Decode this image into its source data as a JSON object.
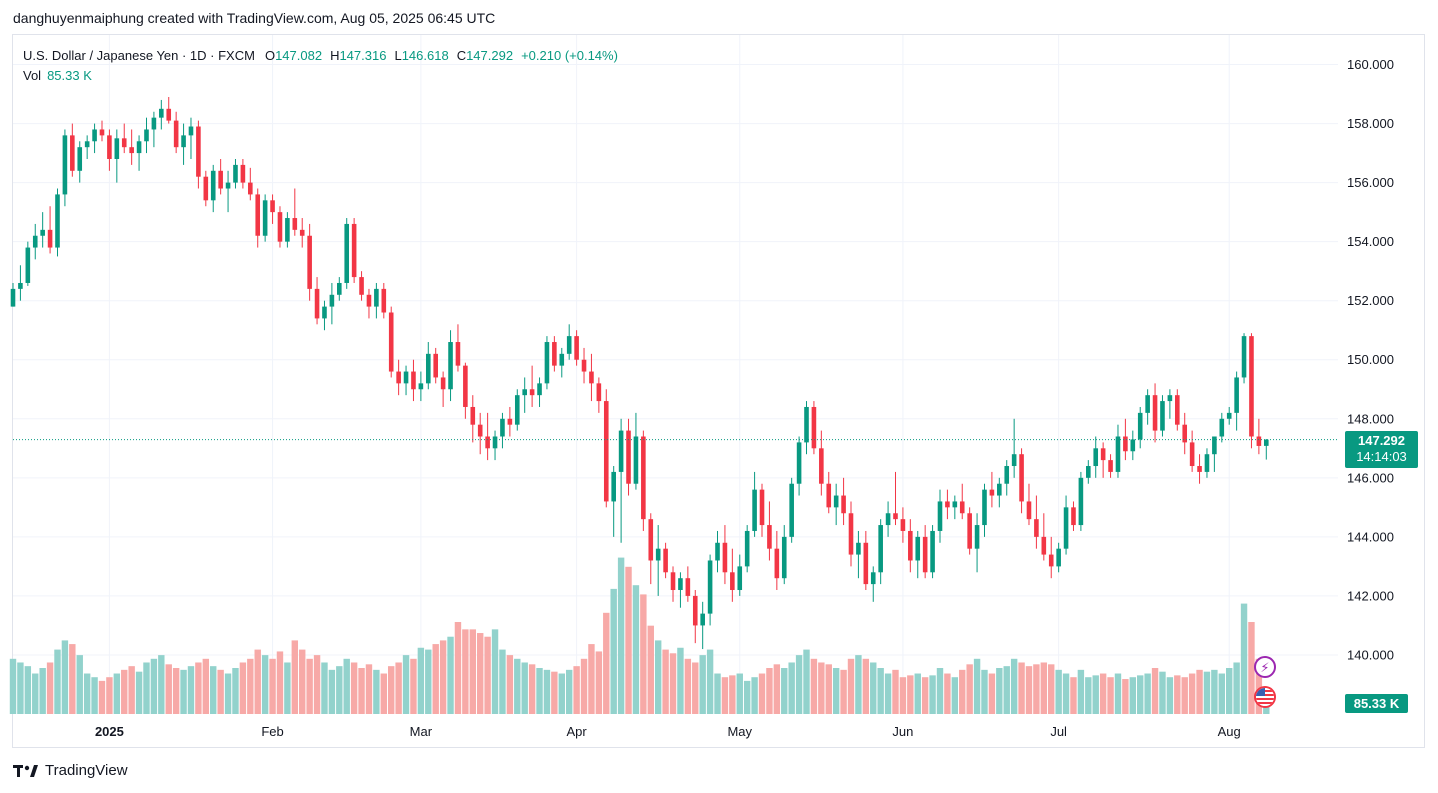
{
  "header": {
    "created_by": "danghuyenmaiphung created with TradingView.com, Aug 05, 2025 06:45 UTC"
  },
  "legend": {
    "symbol": "U.S. Dollar / Japanese Yen · 1D · FXCM",
    "o_label": "O",
    "o_value": "147.082",
    "h_label": "H",
    "h_value": "147.316",
    "l_label": "L",
    "l_value": "146.618",
    "c_label": "C",
    "c_value": "147.292",
    "change": "+0.210 (+0.14%)",
    "vol_label": "Vol",
    "vol_value": "85.33 K"
  },
  "price_tag": {
    "price": "147.292",
    "countdown": "14:14:03"
  },
  "volume_tag": "85.33 K",
  "footer": {
    "brand": "TradingView"
  },
  "colors": {
    "up": "#089981",
    "down": "#f23645",
    "up_vol": "#92d2cc",
    "down_vol": "#f7a9a7"
  },
  "icons": {
    "event_1": "lightning-icon",
    "event_2": "us-flag-icon",
    "logo": "tradingview-logo-icon"
  },
  "chart_data": {
    "type": "candlestick",
    "symbol": "USDJPY",
    "ylim": [
      138.0,
      161.0
    ],
    "y_ticks": [
      "160.000",
      "158.000",
      "156.000",
      "154.000",
      "152.000",
      "150.000",
      "148.000",
      "146.000",
      "144.000",
      "142.000",
      "140.000"
    ],
    "x_labels": [
      {
        "label": "2025",
        "bar": 13,
        "bold": true
      },
      {
        "label": "Feb",
        "bar": 35
      },
      {
        "label": "Mar",
        "bar": 55
      },
      {
        "label": "Apr",
        "bar": 76
      },
      {
        "label": "May",
        "bar": 98
      },
      {
        "label": "Jun",
        "bar": 120
      },
      {
        "label": "Jul",
        "bar": 141
      },
      {
        "label": "Aug",
        "bar": 164
      }
    ],
    "last_price": 147.292,
    "volume_max": 100,
    "candles": [
      [
        151.8,
        152.6,
        151.8,
        152.4,
        30
      ],
      [
        152.4,
        153.2,
        152.0,
        152.6,
        28
      ],
      [
        152.6,
        154.0,
        152.5,
        153.8,
        26
      ],
      [
        153.8,
        154.6,
        153.4,
        154.2,
        22
      ],
      [
        154.2,
        155.0,
        153.8,
        154.4,
        25
      ],
      [
        154.4,
        155.2,
        153.6,
        153.8,
        28
      ],
      [
        153.8,
        155.8,
        153.5,
        155.6,
        35
      ],
      [
        155.6,
        157.8,
        155.2,
        157.6,
        40
      ],
      [
        157.6,
        158.0,
        156.2,
        156.4,
        38
      ],
      [
        156.4,
        157.4,
        156.0,
        157.2,
        32
      ],
      [
        157.2,
        157.6,
        156.8,
        157.4,
        22
      ],
      [
        157.4,
        158.0,
        157.0,
        157.8,
        20
      ],
      [
        157.8,
        158.1,
        157.4,
        157.6,
        18
      ],
      [
        157.6,
        157.8,
        156.4,
        156.8,
        20
      ],
      [
        156.8,
        157.8,
        156.0,
        157.5,
        22
      ],
      [
        157.5,
        158.0,
        157.0,
        157.2,
        24
      ],
      [
        157.2,
        157.8,
        156.6,
        157.0,
        26
      ],
      [
        157.0,
        157.6,
        156.4,
        157.4,
        23
      ],
      [
        157.4,
        158.2,
        157.0,
        157.8,
        28
      ],
      [
        157.8,
        158.4,
        157.2,
        158.2,
        30
      ],
      [
        158.2,
        158.8,
        157.8,
        158.5,
        32
      ],
      [
        158.5,
        158.9,
        158.0,
        158.1,
        27
      ],
      [
        158.1,
        158.4,
        157.0,
        157.2,
        25
      ],
      [
        157.2,
        158.0,
        156.6,
        157.6,
        24
      ],
      [
        157.6,
        158.2,
        156.8,
        157.9,
        26
      ],
      [
        157.9,
        158.1,
        155.8,
        156.2,
        28
      ],
      [
        156.2,
        156.4,
        155.2,
        155.4,
        30
      ],
      [
        155.4,
        156.6,
        155.0,
        156.4,
        26
      ],
      [
        156.4,
        156.8,
        155.6,
        155.8,
        24
      ],
      [
        155.8,
        156.4,
        155.0,
        156.0,
        22
      ],
      [
        156.0,
        156.8,
        155.8,
        156.6,
        25
      ],
      [
        156.6,
        156.8,
        155.8,
        156.0,
        28
      ],
      [
        156.0,
        156.5,
        155.4,
        155.6,
        30
      ],
      [
        155.6,
        155.8,
        153.8,
        154.2,
        35
      ],
      [
        154.2,
        155.6,
        154.0,
        155.4,
        32
      ],
      [
        155.4,
        155.6,
        154.6,
        155.0,
        30
      ],
      [
        155.0,
        155.2,
        153.8,
        154.0,
        34
      ],
      [
        154.0,
        155.0,
        153.8,
        154.8,
        28
      ],
      [
        154.8,
        155.8,
        154.2,
        154.4,
        40
      ],
      [
        154.4,
        154.8,
        153.8,
        154.2,
        35
      ],
      [
        154.2,
        154.6,
        152.0,
        152.4,
        30
      ],
      [
        152.4,
        152.8,
        151.2,
        151.4,
        32
      ],
      [
        151.4,
        152.0,
        151.0,
        151.8,
        28
      ],
      [
        151.8,
        152.6,
        151.2,
        152.2,
        24
      ],
      [
        152.2,
        152.8,
        152.0,
        152.6,
        26
      ],
      [
        152.6,
        154.8,
        152.4,
        154.6,
        30
      ],
      [
        154.6,
        154.8,
        152.6,
        152.8,
        28
      ],
      [
        152.8,
        153.0,
        152.0,
        152.2,
        25
      ],
      [
        152.2,
        152.4,
        151.4,
        151.8,
        27
      ],
      [
        151.8,
        152.6,
        151.4,
        152.4,
        24
      ],
      [
        152.4,
        152.6,
        151.4,
        151.6,
        22
      ],
      [
        151.6,
        151.8,
        149.4,
        149.6,
        26
      ],
      [
        149.6,
        150.0,
        148.8,
        149.2,
        28
      ],
      [
        149.2,
        149.8,
        148.8,
        149.6,
        32
      ],
      [
        149.6,
        150.0,
        148.6,
        149.0,
        30
      ],
      [
        149.0,
        149.6,
        148.6,
        149.2,
        36
      ],
      [
        149.2,
        150.6,
        149.0,
        150.2,
        35
      ],
      [
        150.2,
        150.4,
        149.2,
        149.4,
        38
      ],
      [
        149.4,
        149.6,
        148.4,
        149.0,
        40
      ],
      [
        149.0,
        151.0,
        148.6,
        150.6,
        42
      ],
      [
        150.6,
        151.2,
        149.6,
        149.8,
        50
      ],
      [
        149.8,
        149.9,
        148.0,
        148.4,
        46
      ],
      [
        148.4,
        148.8,
        147.2,
        147.8,
        46
      ],
      [
        147.8,
        148.2,
        146.8,
        147.4,
        44
      ],
      [
        147.4,
        148.2,
        146.6,
        147.0,
        42
      ],
      [
        147.0,
        147.6,
        146.6,
        147.4,
        46
      ],
      [
        147.4,
        148.2,
        147.0,
        148.0,
        35
      ],
      [
        148.0,
        148.4,
        147.4,
        147.8,
        32
      ],
      [
        147.8,
        149.0,
        147.6,
        148.8,
        30
      ],
      [
        148.8,
        149.4,
        148.2,
        149.0,
        28
      ],
      [
        149.0,
        149.8,
        148.4,
        148.8,
        27
      ],
      [
        148.8,
        149.4,
        148.4,
        149.2,
        25
      ],
      [
        149.2,
        150.8,
        149.0,
        150.6,
        24
      ],
      [
        150.6,
        150.8,
        149.6,
        149.8,
        23
      ],
      [
        149.8,
        150.4,
        149.4,
        150.2,
        22
      ],
      [
        150.2,
        151.2,
        150.0,
        150.8,
        24
      ],
      [
        150.8,
        151.0,
        149.8,
        150.0,
        26
      ],
      [
        150.0,
        150.4,
        149.2,
        149.6,
        30
      ],
      [
        149.6,
        150.2,
        148.6,
        149.2,
        38
      ],
      [
        149.2,
        149.4,
        148.2,
        148.6,
        34
      ],
      [
        148.6,
        149.0,
        145.0,
        145.2,
        55
      ],
      [
        145.2,
        146.4,
        144.0,
        146.2,
        68
      ],
      [
        146.2,
        148.0,
        143.8,
        147.6,
        85
      ],
      [
        147.6,
        148.0,
        145.4,
        145.8,
        80
      ],
      [
        145.8,
        148.2,
        145.6,
        147.4,
        70
      ],
      [
        147.4,
        147.6,
        144.2,
        144.6,
        65
      ],
      [
        144.6,
        144.8,
        142.4,
        143.2,
        48
      ],
      [
        143.2,
        144.4,
        142.0,
        143.6,
        40
      ],
      [
        143.6,
        143.8,
        142.6,
        142.8,
        35
      ],
      [
        142.8,
        143.0,
        141.8,
        142.2,
        33
      ],
      [
        142.2,
        142.8,
        141.6,
        142.6,
        36
      ],
      [
        142.6,
        143.0,
        141.8,
        142.0,
        30
      ],
      [
        142.0,
        142.2,
        140.4,
        141.0,
        28
      ],
      [
        141.0,
        141.8,
        140.2,
        141.4,
        32
      ],
      [
        141.4,
        143.4,
        141.0,
        143.2,
        35
      ],
      [
        143.2,
        144.2,
        142.8,
        143.8,
        22
      ],
      [
        143.8,
        144.4,
        142.4,
        142.8,
        20
      ],
      [
        142.8,
        143.6,
        141.8,
        142.2,
        21
      ],
      [
        142.2,
        143.4,
        142.0,
        143.0,
        22
      ],
      [
        143.0,
        144.4,
        142.8,
        144.2,
        18
      ],
      [
        144.2,
        146.2,
        144.0,
        145.6,
        20
      ],
      [
        145.6,
        145.8,
        144.0,
        144.4,
        22
      ],
      [
        144.4,
        145.2,
        143.2,
        143.6,
        25
      ],
      [
        143.6,
        144.2,
        142.2,
        142.6,
        27
      ],
      [
        142.6,
        144.4,
        142.4,
        144.0,
        25
      ],
      [
        144.0,
        146.0,
        143.8,
        145.8,
        28
      ],
      [
        145.8,
        147.4,
        145.4,
        147.2,
        32
      ],
      [
        147.2,
        148.6,
        146.8,
        148.4,
        35
      ],
      [
        148.4,
        148.6,
        146.8,
        147.0,
        30
      ],
      [
        147.0,
        147.6,
        145.4,
        145.8,
        28
      ],
      [
        145.8,
        146.2,
        144.8,
        145.0,
        27
      ],
      [
        145.0,
        145.8,
        144.4,
        145.4,
        25
      ],
      [
        145.4,
        146.0,
        144.4,
        144.8,
        24
      ],
      [
        144.8,
        145.2,
        143.0,
        143.4,
        30
      ],
      [
        143.4,
        144.2,
        142.6,
        143.8,
        32
      ],
      [
        143.8,
        144.2,
        142.2,
        142.4,
        30
      ],
      [
        142.4,
        143.0,
        141.8,
        142.8,
        28
      ],
      [
        142.8,
        144.6,
        142.4,
        144.4,
        25
      ],
      [
        144.4,
        145.2,
        144.0,
        144.8,
        22
      ],
      [
        144.8,
        146.2,
        144.4,
        144.6,
        24
      ],
      [
        144.6,
        145.0,
        143.8,
        144.2,
        20
      ],
      [
        144.2,
        144.6,
        142.8,
        143.2,
        21
      ],
      [
        143.2,
        144.2,
        142.6,
        144.0,
        22
      ],
      [
        144.0,
        144.4,
        142.6,
        142.8,
        20
      ],
      [
        142.8,
        144.4,
        142.6,
        144.2,
        21
      ],
      [
        144.2,
        145.6,
        143.8,
        145.2,
        25
      ],
      [
        145.2,
        145.6,
        144.6,
        145.0,
        22
      ],
      [
        145.0,
        145.4,
        144.6,
        145.2,
        20
      ],
      [
        145.2,
        145.8,
        144.6,
        144.8,
        24
      ],
      [
        144.8,
        145.0,
        143.4,
        143.6,
        27
      ],
      [
        143.6,
        144.8,
        142.8,
        144.4,
        30
      ],
      [
        144.4,
        145.8,
        144.0,
        145.6,
        24
      ],
      [
        145.6,
        146.2,
        145.0,
        145.4,
        22
      ],
      [
        145.4,
        146.0,
        145.0,
        145.8,
        25
      ],
      [
        145.8,
        146.6,
        145.4,
        146.4,
        26
      ],
      [
        146.4,
        148.0,
        146.0,
        146.8,
        30
      ],
      [
        146.8,
        147.0,
        144.8,
        145.2,
        28
      ],
      [
        145.2,
        145.8,
        144.4,
        144.6,
        26
      ],
      [
        144.6,
        145.4,
        143.6,
        144.0,
        27
      ],
      [
        144.0,
        144.8,
        143.2,
        143.4,
        28
      ],
      [
        143.4,
        144.0,
        142.6,
        143.0,
        27
      ],
      [
        143.0,
        143.8,
        142.8,
        143.6,
        24
      ],
      [
        143.6,
        145.4,
        143.4,
        145.0,
        22
      ],
      [
        145.0,
        145.2,
        144.2,
        144.4,
        20
      ],
      [
        144.4,
        146.2,
        144.2,
        146.0,
        24
      ],
      [
        146.0,
        146.6,
        145.8,
        146.4,
        20
      ],
      [
        146.4,
        147.4,
        146.0,
        147.0,
        21
      ],
      [
        147.0,
        147.2,
        146.0,
        146.6,
        22
      ],
      [
        146.6,
        146.8,
        146.0,
        146.2,
        20
      ],
      [
        146.2,
        147.8,
        146.0,
        147.4,
        22
      ],
      [
        147.4,
        148.0,
        146.6,
        146.9,
        19
      ],
      [
        146.9,
        147.6,
        146.6,
        147.3,
        20
      ],
      [
        147.3,
        148.4,
        147.0,
        148.2,
        21
      ],
      [
        148.2,
        149.0,
        147.8,
        148.8,
        22
      ],
      [
        148.8,
        149.2,
        147.2,
        147.6,
        25
      ],
      [
        147.6,
        148.8,
        147.4,
        148.6,
        23
      ],
      [
        148.6,
        149.0,
        148.0,
        148.8,
        20
      ],
      [
        148.8,
        149.0,
        147.6,
        147.8,
        21
      ],
      [
        147.8,
        148.2,
        146.8,
        147.2,
        20
      ],
      [
        147.2,
        147.6,
        146.2,
        146.4,
        22
      ],
      [
        146.4,
        146.8,
        145.8,
        146.2,
        24
      ],
      [
        146.2,
        147.0,
        146.0,
        146.8,
        23
      ],
      [
        146.8,
        147.4,
        146.2,
        147.4,
        24
      ],
      [
        147.4,
        148.2,
        147.2,
        148.0,
        22
      ],
      [
        148.0,
        148.4,
        147.8,
        148.2,
        25
      ],
      [
        148.2,
        149.6,
        147.6,
        149.4,
        28
      ],
      [
        149.4,
        150.9,
        149.2,
        150.8,
        60
      ],
      [
        150.8,
        150.9,
        147.0,
        147.4,
        50
      ],
      [
        147.4,
        148.0,
        146.8,
        147.08,
        30
      ],
      [
        147.082,
        147.316,
        146.618,
        147.292,
        14
      ]
    ]
  }
}
